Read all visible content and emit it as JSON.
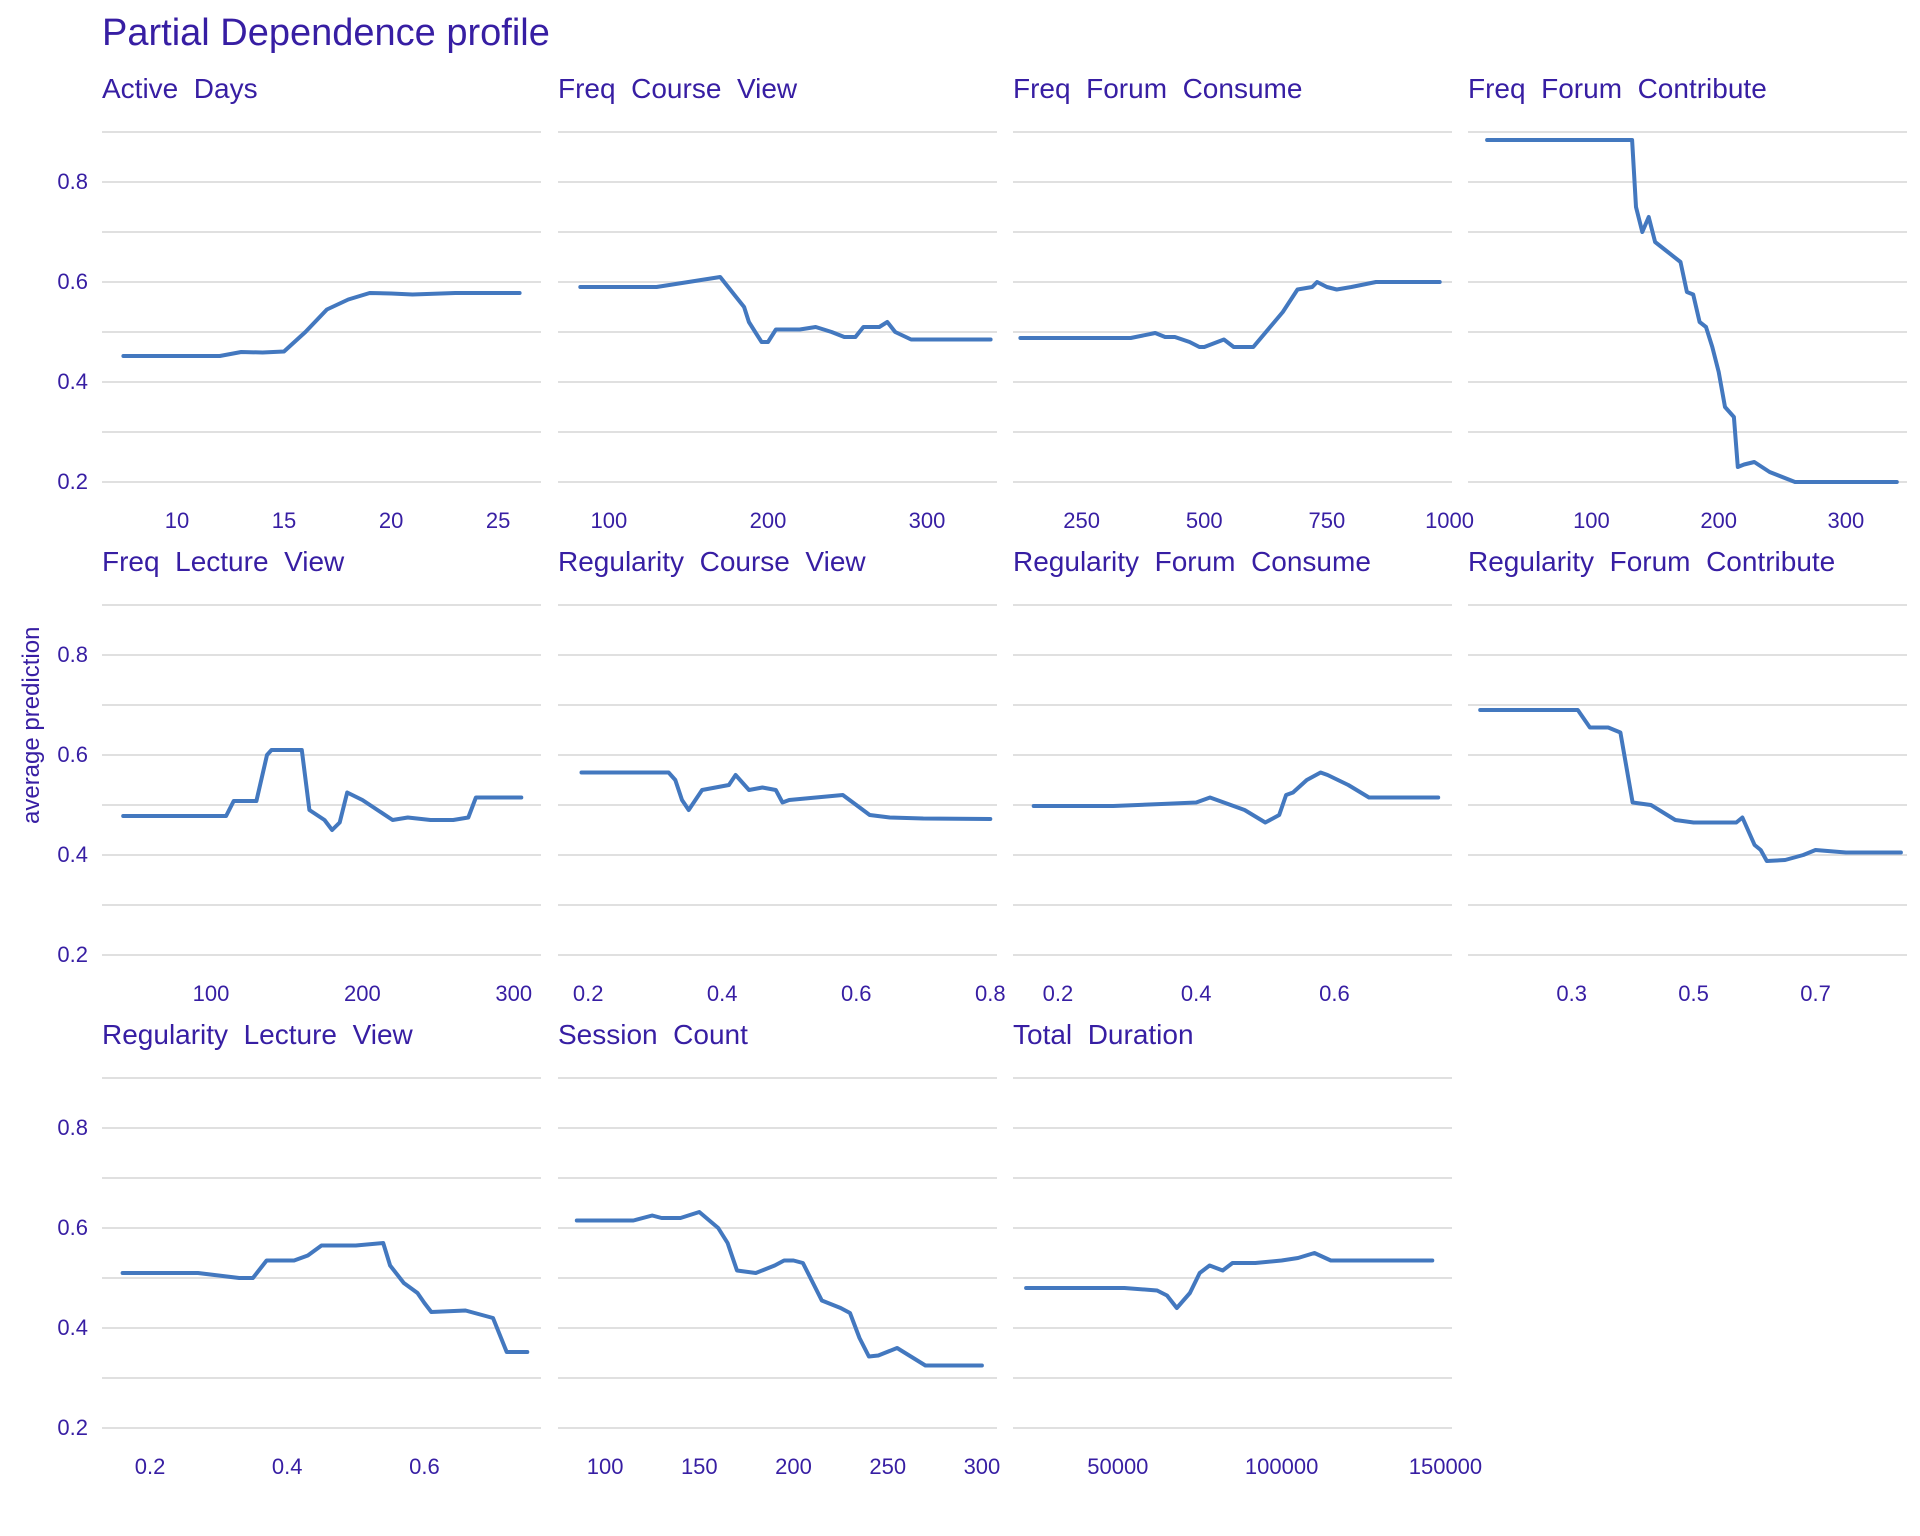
{
  "chart_data": {
    "type": "line",
    "title": "Partial Dependence profile",
    "ylabel": "average prediction",
    "xlabel": "",
    "ylim": [
      0.18,
      0.92
    ],
    "grid": true,
    "legend": "none",
    "colors": {
      "line": "#4378bf",
      "text": "#371ea3",
      "grid": "#e0e0e0"
    },
    "yticks": [
      0.2,
      0.4,
      0.6,
      0.8
    ],
    "panels": [
      {
        "name": "Active  Days",
        "xlim": [
          6.5,
          27
        ],
        "xticks": [
          10,
          15,
          20,
          25
        ],
        "xticklabels": [
          "10",
          "15",
          "20",
          "25"
        ],
        "x": [
          7.5,
          12,
          13,
          14,
          15,
          16,
          17,
          18,
          19,
          20,
          21,
          23,
          26
        ],
        "y": [
          0.452,
          0.452,
          0.46,
          0.459,
          0.461,
          0.5,
          0.545,
          0.565,
          0.578,
          0.577,
          0.575,
          0.578,
          0.578
        ]
      },
      {
        "name": "Freq  Course  View",
        "xlim": [
          68,
          344
        ],
        "xticks": [
          100,
          200,
          300
        ],
        "xticklabels": [
          "100",
          "200",
          "300"
        ],
        "x": [
          82,
          130,
          150,
          170,
          180,
          185,
          188,
          192,
          196,
          200,
          205,
          220,
          230,
          240,
          248,
          255,
          260,
          270,
          275,
          280,
          290,
          310,
          340
        ],
        "y": [
          0.59,
          0.59,
          0.6,
          0.61,
          0.57,
          0.55,
          0.52,
          0.5,
          0.48,
          0.48,
          0.505,
          0.505,
          0.51,
          0.5,
          0.49,
          0.49,
          0.51,
          0.51,
          0.52,
          0.5,
          0.485,
          0.485,
          0.485
        ]
      },
      {
        "name": "Freq  Forum  Consume",
        "xlim": [
          110,
          1005
        ],
        "xticks": [
          250,
          500,
          750,
          1000
        ],
        "xticklabels": [
          "250",
          "500",
          "750",
          "1000"
        ],
        "x": [
          125,
          350,
          400,
          420,
          440,
          470,
          490,
          500,
          540,
          560,
          600,
          660,
          690,
          720,
          730,
          750,
          770,
          800,
          850,
          950,
          980
        ],
        "y": [
          0.488,
          0.488,
          0.498,
          0.49,
          0.49,
          0.48,
          0.47,
          0.47,
          0.485,
          0.47,
          0.47,
          0.54,
          0.585,
          0.59,
          0.6,
          0.59,
          0.585,
          0.59,
          0.6,
          0.6,
          0.6
        ]
      },
      {
        "name": "Freq  Forum  Contribute",
        "xlim": [
          3,
          348
        ],
        "xticks": [
          100,
          200,
          300
        ],
        "xticklabels": [
          "100",
          "200",
          "300"
        ],
        "x": [
          18,
          132,
          135,
          140,
          145,
          150,
          160,
          170,
          175,
          180,
          185,
          190,
          195,
          200,
          205,
          212,
          215,
          220,
          228,
          240,
          260,
          340
        ],
        "y": [
          0.884,
          0.884,
          0.75,
          0.7,
          0.73,
          0.68,
          0.66,
          0.64,
          0.58,
          0.575,
          0.52,
          0.51,
          0.47,
          0.42,
          0.35,
          0.33,
          0.23,
          0.235,
          0.24,
          0.22,
          0.2,
          0.2
        ]
      },
      {
        "name": "Freq  Lecture  View",
        "xlim": [
          28,
          318
        ],
        "xticks": [
          100,
          200,
          300
        ],
        "xticklabels": [
          "100",
          "200",
          "300"
        ],
        "x": [
          42,
          110,
          115,
          130,
          137,
          140,
          160,
          165,
          175,
          180,
          185,
          190,
          200,
          220,
          230,
          245,
          260,
          270,
          275,
          305
        ],
        "y": [
          0.478,
          0.478,
          0.508,
          0.508,
          0.6,
          0.61,
          0.61,
          0.49,
          0.47,
          0.45,
          0.465,
          0.525,
          0.51,
          0.47,
          0.475,
          0.47,
          0.47,
          0.475,
          0.515,
          0.515
        ]
      },
      {
        "name": "Regularity  Course  View",
        "xlim": [
          0.155,
          0.81
        ],
        "xticks": [
          0.2,
          0.4,
          0.6,
          0.8
        ],
        "xticklabels": [
          "0.2",
          "0.4",
          "0.6",
          "0.8"
        ],
        "x": [
          0.19,
          0.32,
          0.33,
          0.34,
          0.35,
          0.37,
          0.39,
          0.41,
          0.42,
          0.44,
          0.46,
          0.48,
          0.49,
          0.5,
          0.54,
          0.58,
          0.6,
          0.62,
          0.65,
          0.7,
          0.8
        ],
        "y": [
          0.565,
          0.565,
          0.55,
          0.51,
          0.49,
          0.53,
          0.535,
          0.54,
          0.56,
          0.53,
          0.535,
          0.53,
          0.505,
          0.51,
          0.515,
          0.52,
          0.5,
          0.48,
          0.475,
          0.473,
          0.472
        ]
      },
      {
        "name": "Regularity  Forum  Consume",
        "xlim": [
          0.135,
          0.77
        ],
        "xticks": [
          0.2,
          0.4,
          0.6
        ],
        "xticklabels": [
          "0.2",
          "0.4",
          "0.6"
        ],
        "x": [
          0.165,
          0.28,
          0.35,
          0.4,
          0.42,
          0.45,
          0.47,
          0.5,
          0.52,
          0.53,
          0.54,
          0.56,
          0.58,
          0.59,
          0.62,
          0.65,
          0.7,
          0.75
        ],
        "y": [
          0.498,
          0.498,
          0.502,
          0.505,
          0.515,
          0.5,
          0.49,
          0.465,
          0.48,
          0.52,
          0.525,
          0.55,
          0.565,
          0.56,
          0.54,
          0.515,
          0.515,
          0.515
        ]
      },
      {
        "name": "Regularity  Forum  Contribute",
        "xlim": [
          0.13,
          0.85
        ],
        "xticks": [
          0.3,
          0.5,
          0.7
        ],
        "xticklabels": [
          "0.3",
          "0.5",
          "0.7"
        ],
        "x": [
          0.15,
          0.31,
          0.33,
          0.36,
          0.38,
          0.4,
          0.43,
          0.47,
          0.5,
          0.57,
          0.58,
          0.6,
          0.61,
          0.62,
          0.65,
          0.68,
          0.7,
          0.75,
          0.84
        ],
        "y": [
          0.69,
          0.69,
          0.655,
          0.655,
          0.645,
          0.505,
          0.5,
          0.47,
          0.465,
          0.465,
          0.475,
          0.42,
          0.41,
          0.388,
          0.39,
          0.4,
          0.41,
          0.405,
          0.405
        ]
      },
      {
        "name": "Regularity  Lecture  View",
        "xlim": [
          0.13,
          0.77
        ],
        "xticks": [
          0.2,
          0.4,
          0.6
        ],
        "xticklabels": [
          "0.2",
          "0.4",
          "0.6"
        ],
        "x": [
          0.16,
          0.27,
          0.33,
          0.35,
          0.37,
          0.41,
          0.43,
          0.45,
          0.5,
          0.54,
          0.55,
          0.57,
          0.59,
          0.6,
          0.61,
          0.66,
          0.7,
          0.72,
          0.75
        ],
        "y": [
          0.51,
          0.51,
          0.5,
          0.5,
          0.535,
          0.535,
          0.545,
          0.565,
          0.565,
          0.57,
          0.525,
          0.49,
          0.47,
          0.45,
          0.432,
          0.435,
          0.42,
          0.352,
          0.352
        ]
      },
      {
        "name": "Session  Count",
        "xlim": [
          75,
          308
        ],
        "xticks": [
          100,
          150,
          200,
          250,
          300
        ],
        "xticklabels": [
          "100",
          "150",
          "200",
          "250",
          "300"
        ],
        "x": [
          85,
          115,
          125,
          130,
          140,
          150,
          160,
          165,
          170,
          180,
          190,
          195,
          200,
          205,
          215,
          225,
          230,
          235,
          240,
          245,
          255,
          270,
          300
        ],
        "y": [
          0.615,
          0.615,
          0.625,
          0.62,
          0.62,
          0.632,
          0.6,
          0.57,
          0.515,
          0.51,
          0.525,
          0.535,
          0.535,
          0.53,
          0.455,
          0.44,
          0.43,
          0.38,
          0.343,
          0.345,
          0.36,
          0.325,
          0.325
        ]
      },
      {
        "name": "Total  Duration",
        "xlim": [
          18000,
          152000
        ],
        "xticks": [
          50000,
          100000,
          150000
        ],
        "xticklabels": [
          "50000",
          "100000",
          "150000"
        ],
        "x": [
          22000,
          52000,
          62000,
          65000,
          68000,
          72000,
          75000,
          78000,
          82000,
          85000,
          92000,
          100000,
          105000,
          110000,
          115000,
          146000
        ],
        "y": [
          0.48,
          0.48,
          0.475,
          0.465,
          0.44,
          0.47,
          0.51,
          0.525,
          0.515,
          0.53,
          0.53,
          0.535,
          0.54,
          0.55,
          0.535,
          0.535
        ]
      }
    ]
  }
}
